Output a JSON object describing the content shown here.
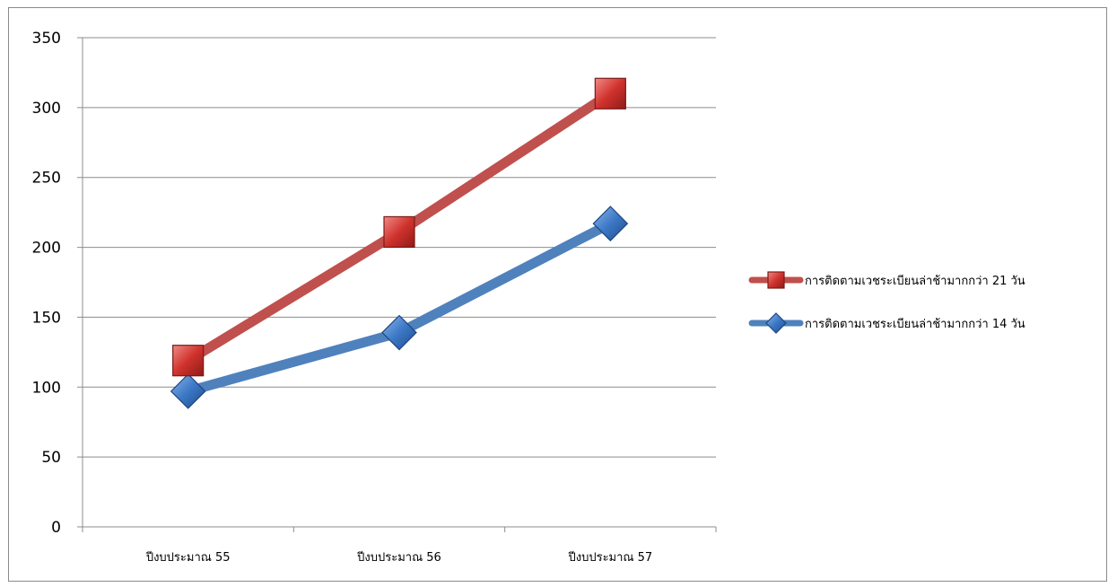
{
  "chart_data": {
    "type": "line",
    "categories": [
      "ปีงบประมาณ 55",
      "ปีงบประมาณ 56",
      "ปีงบประมาณ 57"
    ],
    "ylim": [
      0,
      350
    ],
    "yticks": [
      0,
      50,
      100,
      150,
      200,
      250,
      300,
      350
    ],
    "grid": true,
    "legend_position": "right",
    "series": [
      {
        "name": "การติดตามเวชระเบียนล่าช้ามากกว่า 21 วัน",
        "values": [
          119,
          211,
          310
        ],
        "marker": "square",
        "color": "#c0504d",
        "marker_color": "#c0302c"
      },
      {
        "name": "การติดตามเวชระเบียนล่าช้ามากกว่า 14 วัน",
        "values": [
          97,
          139,
          217
        ],
        "marker": "diamond",
        "color": "#4f81bd",
        "marker_color": "#3f77c4"
      }
    ]
  }
}
